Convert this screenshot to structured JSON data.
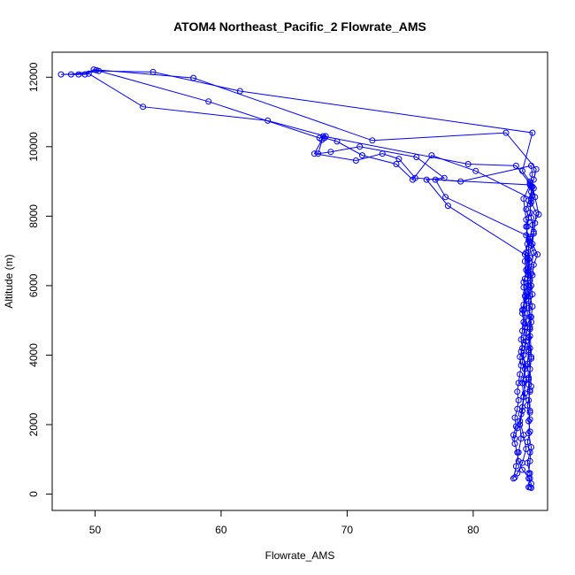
{
  "chart_data": {
    "type": "line",
    "title": "ATOM4 Northeast_Pacific_2 Flowrate_AMS",
    "xlabel": "Flowrate_AMS",
    "ylabel": "Altitude (m)",
    "xlim": [
      46.6,
      85.9
    ],
    "ylim": [
      -470,
      12720
    ],
    "xticks": [
      50,
      60,
      70,
      80
    ],
    "yticks": [
      0,
      2000,
      4000,
      6000,
      8000,
      10000,
      12000
    ],
    "grid": false,
    "legend": "none",
    "series_color": "#0000ff",
    "marker": "open-circle",
    "series": [
      {
        "x": [
          84.4,
          84.5,
          83.9,
          83.6,
          83.5,
          83.3,
          83.2,
          83.4,
          83.3,
          83.5,
          83.6,
          83.5,
          83.6,
          83.7,
          83.8,
          83.7,
          83.9,
          83.8,
          83.9,
          84.0,
          83.9,
          84.0,
          84.1,
          84.0,
          84.1,
          84.2,
          84.1,
          84.2,
          84.3,
          84.2,
          84.3,
          84.4,
          84.2,
          84.4,
          84.6,
          84.5,
          84.7,
          84.6,
          79.0,
          75.4,
          74.1,
          72.8,
          70.7,
          67.4,
          68.0,
          68.3,
          63.7,
          53.8,
          49.5,
          47.3,
          48.7,
          50.3,
          54.6,
          61.5,
          84.7,
          83.9,
          84.5,
          84.8,
          84.7,
          84.6,
          85.0,
          84.9,
          84.8,
          84.7,
          85.1,
          84.8,
          84.7,
          84.6,
          84.5,
          84.7,
          84.6,
          84.5,
          84.4,
          84.5,
          84.6,
          84.5,
          84.4,
          84.5,
          84.4,
          84.5,
          84.4,
          84.5,
          84.3,
          84.5,
          84.3,
          84.5,
          84.4,
          84.6,
          84.5,
          84.6
        ],
        "y": [
          200,
          450,
          700,
          950,
          1200,
          1450,
          1700,
          1950,
          2200,
          2450,
          2700,
          2950,
          3200,
          3450,
          3700,
          3950,
          4200,
          4450,
          4700,
          4950,
          5200,
          5450,
          5700,
          5950,
          6200,
          6450,
          6700,
          6950,
          7200,
          7450,
          7700,
          7950,
          8200,
          8450,
          8700,
          8950,
          9200,
          9450,
          9000,
          9100,
          9650,
          9800,
          9600,
          9800,
          10200,
          10300,
          10750,
          11150,
          12100,
          12080,
          12080,
          12180,
          12150,
          11600,
          10400,
          9300,
          9000,
          8800,
          8600,
          8400,
          8100,
          7800,
          7500,
          7200,
          6900,
          6600,
          6300,
          6000,
          5700,
          5400,
          5100,
          4800,
          4500,
          4200,
          3900,
          3600,
          3300,
          3000,
          2700,
          2400,
          2100,
          1800,
          1500,
          1200,
          900,
          600,
          450,
          300,
          200,
          180
        ]
      },
      {
        "x": [
          83.3,
          83.5,
          83.9,
          84.2,
          84.0,
          83.7,
          83.9,
          84.1,
          84.0,
          84.2,
          83.8,
          84.0,
          84.1,
          83.9,
          84.2,
          84.0,
          84.3,
          84.1,
          84.4,
          84.2,
          84.5,
          84.6,
          80.2,
          76.7,
          75.2,
          73.9,
          71.2,
          69.2,
          68.2,
          67.8,
          59.0,
          50.1,
          48.1,
          49.2,
          49.9,
          57.8,
          72.0,
          82.6,
          85.0,
          84.8,
          84.6,
          84.9,
          85.2,
          84.7,
          84.5,
          84.8,
          84.6,
          84.5,
          84.7,
          84.4,
          84.6,
          84.5,
          84.4,
          84.3,
          84.4,
          84.5,
          84.3,
          84.5,
          84.4,
          84.6,
          84.5,
          84.4
        ],
        "y": [
          480,
          600,
          900,
          1300,
          1700,
          2100,
          2500,
          2900,
          3300,
          3700,
          4100,
          4500,
          4900,
          5300,
          5700,
          6100,
          6500,
          6900,
          7300,
          7700,
          8100,
          8500,
          9300,
          9750,
          9050,
          9500,
          9750,
          10150,
          10250,
          10250,
          11300,
          12200,
          12080,
          12080,
          12220,
          11980,
          10180,
          10400,
          9350,
          9050,
          8850,
          8550,
          8050,
          7750,
          7350,
          6950,
          6550,
          6150,
          5750,
          5350,
          4950,
          4550,
          4150,
          3750,
          3350,
          2950,
          2550,
          2150,
          1750,
          1350,
          950,
          600
        ]
      },
      {
        "x": [
          83.2,
          83.4,
          83.6,
          83.8,
          83.7,
          83.9,
          84.0,
          83.9,
          84.1,
          84.0,
          84.2,
          84.1,
          84.3,
          84.2,
          84.4,
          84.3,
          84.5,
          78.0,
          76.3,
          77.7,
          75.5,
          71.0,
          68.7,
          67.7,
          68.1,
          79.6,
          83.4,
          84.7,
          84.5,
          84.6,
          84.8,
          84.6,
          84.4,
          84.6,
          84.5,
          84.4,
          84.5,
          84.6,
          84.4,
          84.5
        ],
        "y": [
          450,
          800,
          1200,
          1600,
          2000,
          2400,
          2800,
          3200,
          3600,
          4000,
          4400,
          4800,
          5200,
          5600,
          6000,
          6400,
          6800,
          8300,
          9050,
          9100,
          9700,
          10000,
          9850,
          9800,
          10300,
          9500,
          9450,
          8850,
          8350,
          7950,
          7550,
          7150,
          6750,
          6350,
          5950,
          5550,
          4750,
          3950,
          3150,
          2350
        ]
      },
      {
        "x": [
          83.3,
          83.5,
          83.8,
          84.0,
          84.2,
          83.9,
          84.1,
          84.3,
          84.0,
          84.2,
          84.4,
          84.3,
          84.5,
          77.8,
          77.0,
          84.5,
          84.0,
          84.2,
          84.4,
          84.3,
          84.5,
          84.4,
          84.6
        ],
        "y": [
          1600,
          1900,
          2300,
          2800,
          3300,
          3800,
          4300,
          4800,
          5300,
          5800,
          6300,
          6800,
          7400,
          8550,
          9050,
          8900,
          8500,
          7900,
          7100,
          6200,
          5100,
          4100,
          3100
        ]
      }
    ]
  }
}
